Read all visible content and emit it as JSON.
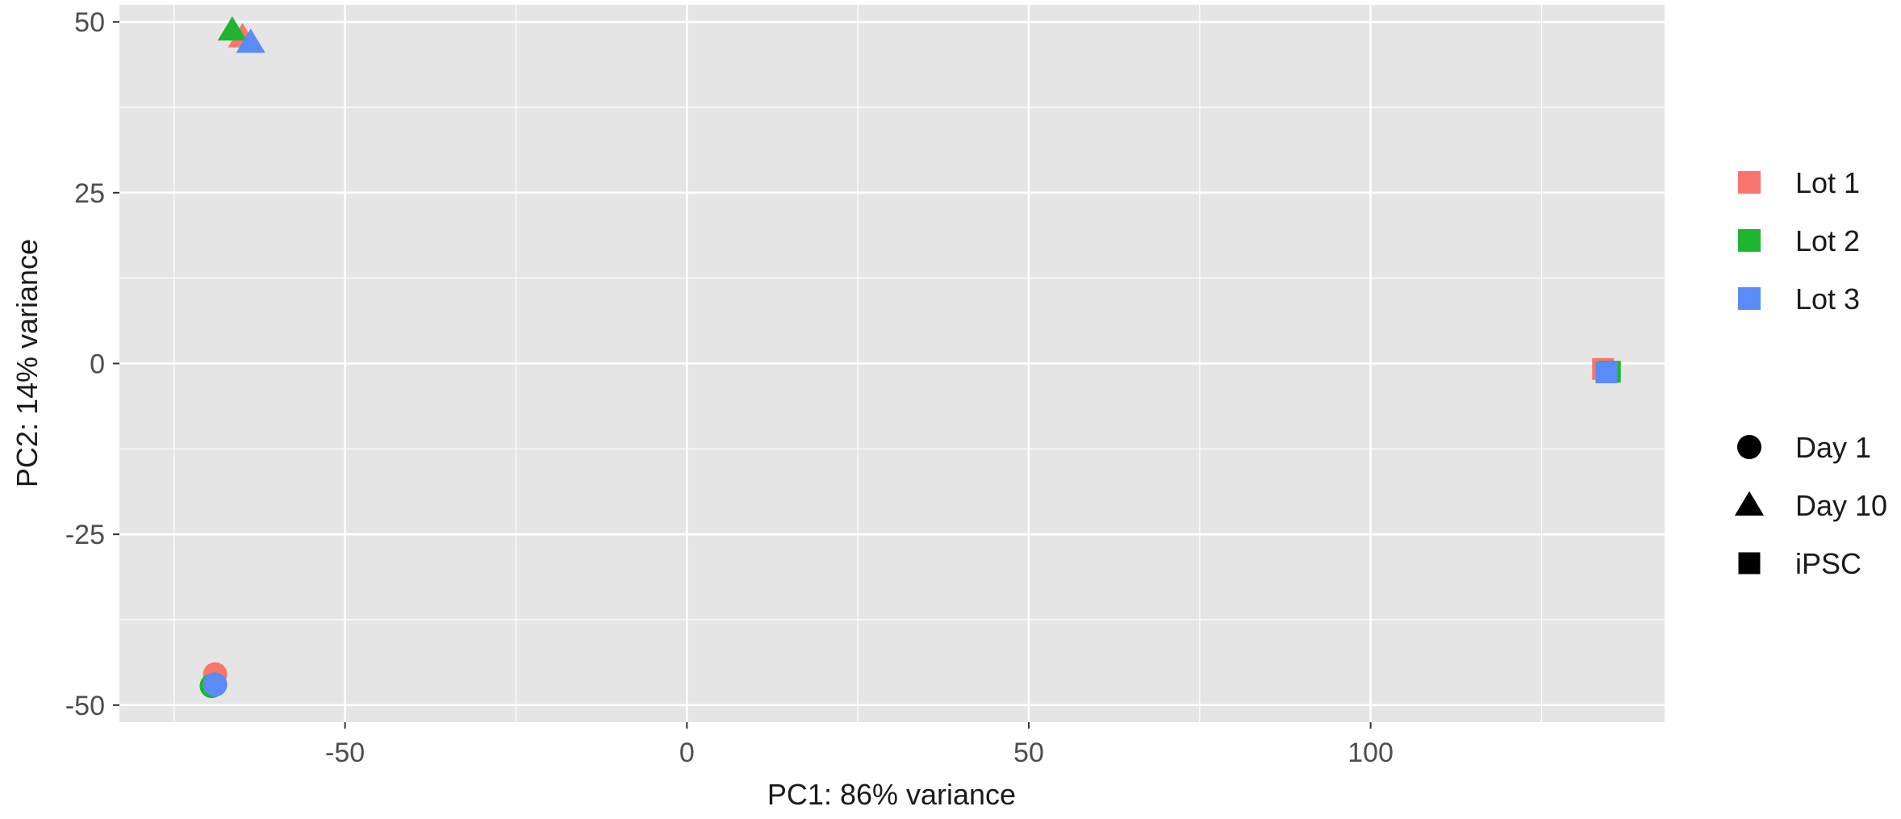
{
  "chart_data": {
    "type": "scatter",
    "title": "",
    "xlabel": "PC1: 86% variance",
    "ylabel": "PC2: 14% variance",
    "xlim": [
      -83,
      143
    ],
    "ylim": [
      -52.5,
      52.5
    ],
    "x_ticks": [
      -50,
      0,
      50,
      100
    ],
    "x_tick_labels": [
      "-50",
      "0",
      "50",
      "100"
    ],
    "y_ticks": [
      -50,
      -25,
      0,
      25,
      50
    ],
    "y_tick_labels": [
      "-50",
      "-25",
      "0",
      "25",
      "50"
    ],
    "grid": true,
    "legend_position": "right",
    "colors": {
      "panel": "#e5e5e5",
      "grid": "#ffffff",
      "Lot 1": "#F8766D",
      "Lot 2": "#1FB52F",
      "Lot 3": "#5B8BF7"
    },
    "legend": {
      "color": [
        {
          "label": "Lot 1",
          "color": "#F8766D"
        },
        {
          "label": "Lot 2",
          "color": "#1FB52F"
        },
        {
          "label": "Lot 3",
          "color": "#5B8BF7"
        }
      ],
      "shape": [
        {
          "label": "Day 1",
          "shape": "circle"
        },
        {
          "label": "Day 10",
          "shape": "triangle"
        },
        {
          "label": "iPSC",
          "shape": "square"
        }
      ]
    },
    "points": [
      {
        "lot": "Lot 1",
        "group": "Day 1",
        "x": -69,
        "y": -45.5
      },
      {
        "lot": "Lot 2",
        "group": "Day 1",
        "x": -69.5,
        "y": -47.2
      },
      {
        "lot": "Lot 3",
        "group": "Day 1",
        "x": -69,
        "y": -47
      },
      {
        "lot": "Lot 1",
        "group": "Day 10",
        "x": -65,
        "y": 47.8
      },
      {
        "lot": "Lot 2",
        "group": "Day 10",
        "x": -66.5,
        "y": 48.8
      },
      {
        "lot": "Lot 3",
        "group": "Day 10",
        "x": -63.8,
        "y": 47
      },
      {
        "lot": "Lot 1",
        "group": "iPSC",
        "x": 134,
        "y": -0.8
      },
      {
        "lot": "Lot 2",
        "group": "iPSC",
        "x": 135,
        "y": -1.2
      },
      {
        "lot": "Lot 3",
        "group": "iPSC",
        "x": 134.5,
        "y": -1.3
      }
    ]
  }
}
